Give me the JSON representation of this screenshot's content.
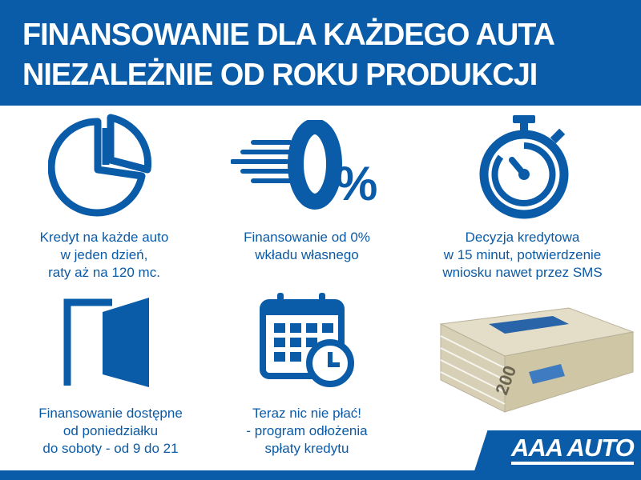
{
  "header": {
    "line1": "FINANSOWANIE DLA KAŻDEGO AUTA",
    "line2": "NIEZALEŻNIE OD ROKU PRODUKCJI"
  },
  "features": [
    {
      "icon": "pie-chart-icon",
      "lines": [
        "Kredyt na każde auto",
        "w jeden dzień,",
        "raty aż na 120 mc."
      ]
    },
    {
      "icon": "zero-percent-icon",
      "lines": [
        "Finansowanie od 0%",
        "wkładu własnego"
      ]
    },
    {
      "icon": "stopwatch-icon",
      "lines": [
        "Decyzja kredytowa",
        "w 15 minut, potwierdzenie",
        "wniosku nawet przez SMS"
      ]
    },
    {
      "icon": "door-icon",
      "lines": [
        "Finansowanie dostępne",
        "od poniedziałku",
        "do soboty - od 9 do 21"
      ]
    },
    {
      "icon": "calendar-clock-icon",
      "lines": [
        "Teraz nic nie płać!",
        "- program odłożenia",
        "spłaty kredytu"
      ]
    }
  ],
  "zero_percent": "0%",
  "logo": "AAA AUTO",
  "colors": {
    "brand": "#0a5ca8",
    "background": "#ffffff"
  }
}
